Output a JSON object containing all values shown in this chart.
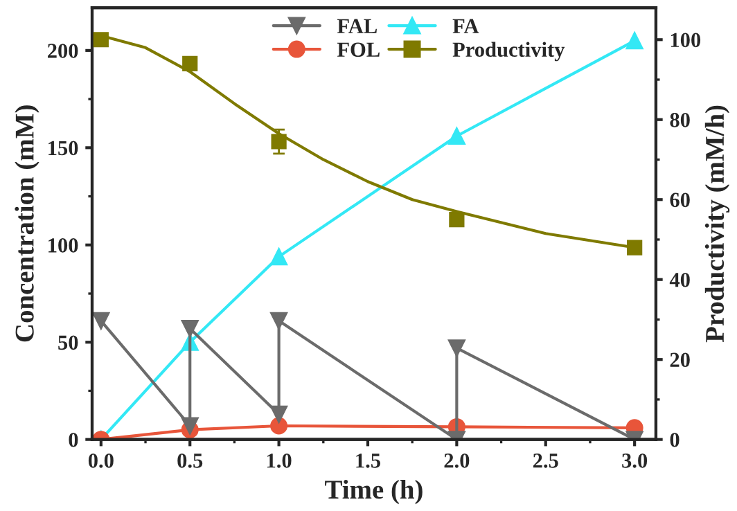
{
  "chart_data": {
    "type": "line",
    "xlabel": "Time (h)",
    "ylabel": "Concentration (mM)",
    "y2label": "Productivity (mM/h)",
    "xlim": [
      -0.05,
      3.12
    ],
    "xticks": [
      {
        "value": 0,
        "label": "0.0"
      },
      {
        "value": 0.5,
        "label": "0.5"
      },
      {
        "value": 1,
        "label": "1.0"
      },
      {
        "value": 1.5,
        "label": "1.5"
      },
      {
        "value": 2,
        "label": "2.0"
      },
      {
        "value": 2.5,
        "label": "2.5"
      },
      {
        "value": 3,
        "label": "3.0"
      }
    ],
    "ylim": [
      0,
      222
    ],
    "yticks": [
      0,
      50,
      100,
      150,
      200
    ],
    "y2lim": [
      0,
      108
    ],
    "y2ticks": [
      0,
      20,
      40,
      60,
      80,
      100
    ],
    "legend": "top",
    "grid": false,
    "series": [
      {
        "name": "FAL",
        "color": "#6b6b6b",
        "marker": "triangle_down",
        "x": [
          0,
          0.5,
          0.5,
          1,
          1,
          2,
          2,
          3
        ],
        "values": [
          61,
          7,
          57,
          13,
          61,
          0,
          47,
          0
        ]
      },
      {
        "name": "FOL",
        "color": "#e8553a",
        "marker": "circle",
        "x": [
          0,
          0.5,
          1,
          2,
          3
        ],
        "values": [
          0,
          5,
          7,
          6.5,
          6
        ]
      },
      {
        "name": "FA",
        "color": "#33e8f5",
        "marker": "triangle",
        "x": [
          0,
          0.5,
          1,
          2,
          3
        ],
        "values": [
          0,
          50,
          94,
          156,
          205
        ]
      },
      {
        "name": "Productivity",
        "type": "scatter",
        "color": "#7f7a00",
        "marker": "square",
        "axis": "y2",
        "x": [
          0,
          0.5,
          1,
          2,
          3
        ],
        "values": [
          100,
          94,
          74.5,
          55,
          48
        ],
        "errors": [
          null,
          null,
          3,
          null,
          null
        ]
      },
      {
        "type": "line",
        "color": "#7f7a00",
        "axis": "y2",
        "x": [
          0,
          0.25,
          0.5,
          0.75,
          1,
          1.25,
          1.5,
          1.75,
          2,
          2.5,
          3
        ],
        "values": [
          101,
          98,
          92,
          84,
          76.5,
          70,
          64.5,
          60,
          57,
          51.5,
          48
        ]
      }
    ]
  }
}
